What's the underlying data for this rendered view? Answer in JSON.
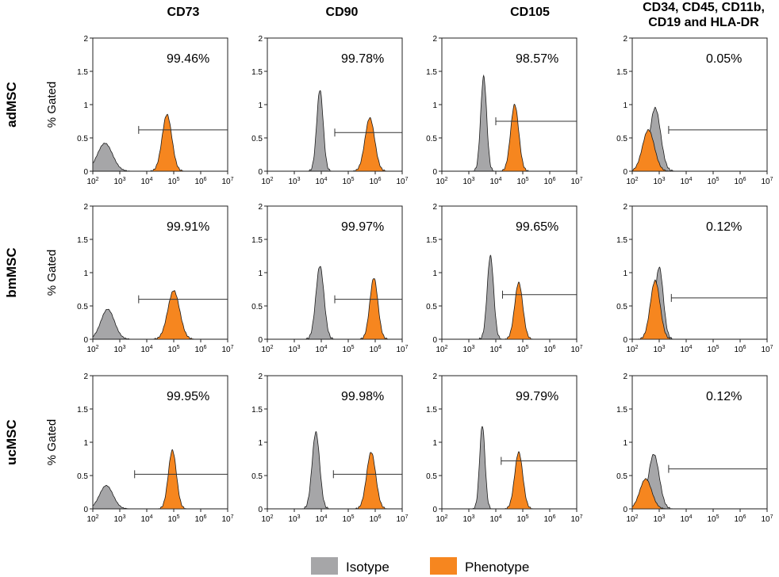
{
  "columns": [
    "CD73",
    "CD90",
    "CD105",
    "CD34, CD45, CD11b,|CD19 and HLA-DR"
  ],
  "rows": [
    "adMSC",
    "bmMSC",
    "ucMSC"
  ],
  "y_axis_label": "% Gated",
  "legend": {
    "isotype_label": "Isotype",
    "phenotype_label": "Phenotype",
    "isotype_color": "#a6a6a8",
    "phenotype_color": "#f6861f"
  },
  "chart_data": {
    "type": "histogram-grid",
    "xscale": "log10",
    "xlim": [
      100,
      10000000
    ],
    "ylim": [
      0,
      2
    ],
    "yticks": [
      0,
      0.5,
      1,
      1.5,
      2
    ],
    "xtick_exponents": [
      2,
      3,
      4,
      5,
      6,
      7
    ],
    "panels": [
      {
        "row": "adMSC",
        "col": "CD73",
        "percent": "99.46%",
        "iso": {
          "logmean": 2.45,
          "sd": 0.28,
          "peak": 0.42
        },
        "phe": {
          "logmean": 4.75,
          "sd": 0.18,
          "peak": 0.85
        },
        "gate": {
          "start": 3.7,
          "end": 7.0,
          "y": 0.62
        }
      },
      {
        "row": "adMSC",
        "col": "CD90",
        "percent": "99.78%",
        "iso": {
          "logmean": 3.95,
          "sd": 0.12,
          "peak": 1.22
        },
        "phe": {
          "logmean": 5.8,
          "sd": 0.18,
          "peak": 0.8
        },
        "gate": {
          "start": 4.5,
          "end": 7.0,
          "y": 0.58
        }
      },
      {
        "row": "adMSC",
        "col": "CD105",
        "percent": "98.57%",
        "iso": {
          "logmean": 3.55,
          "sd": 0.11,
          "peak": 1.42
        },
        "phe": {
          "logmean": 4.7,
          "sd": 0.15,
          "peak": 1.0
        },
        "gate": {
          "start": 4.0,
          "end": 7.0,
          "y": 0.75
        }
      },
      {
        "row": "adMSC",
        "col": "CD34, CD45, CD11b,|CD19 and HLA-DR",
        "percent": "0.05%",
        "iso": {
          "logmean": 2.85,
          "sd": 0.2,
          "peak": 0.95
        },
        "phe": {
          "logmean": 2.6,
          "sd": 0.22,
          "peak": 0.62
        },
        "gate": {
          "start": 3.35,
          "end": 7.0,
          "y": 0.62
        }
      },
      {
        "row": "bmMSC",
        "col": "CD73",
        "percent": "99.91%",
        "iso": {
          "logmean": 2.55,
          "sd": 0.25,
          "peak": 0.45
        },
        "phe": {
          "logmean": 5.0,
          "sd": 0.22,
          "peak": 0.73
        },
        "gate": {
          "start": 3.7,
          "end": 7.0,
          "y": 0.6
        }
      },
      {
        "row": "bmMSC",
        "col": "CD90",
        "percent": "99.97%",
        "iso": {
          "logmean": 3.95,
          "sd": 0.15,
          "peak": 1.1
        },
        "phe": {
          "logmean": 5.95,
          "sd": 0.15,
          "peak": 0.92
        },
        "gate": {
          "start": 4.5,
          "end": 7.0,
          "y": 0.6
        }
      },
      {
        "row": "bmMSC",
        "col": "CD105",
        "percent": "99.65%",
        "iso": {
          "logmean": 3.8,
          "sd": 0.12,
          "peak": 1.25
        },
        "phe": {
          "logmean": 4.85,
          "sd": 0.15,
          "peak": 0.85
        },
        "gate": {
          "start": 4.25,
          "end": 7.0,
          "y": 0.67
        }
      },
      {
        "row": "bmMSC",
        "col": "CD34, CD45, CD11b,|CD19 and HLA-DR",
        "percent": "0.12%",
        "iso": {
          "logmean": 3.0,
          "sd": 0.15,
          "peak": 1.08
        },
        "phe": {
          "logmean": 2.85,
          "sd": 0.18,
          "peak": 0.88
        },
        "gate": {
          "start": 3.45,
          "end": 7.0,
          "y": 0.62
        }
      },
      {
        "row": "ucMSC",
        "col": "CD73",
        "percent": "99.95%",
        "iso": {
          "logmean": 2.5,
          "sd": 0.25,
          "peak": 0.35
        },
        "phe": {
          "logmean": 4.95,
          "sd": 0.15,
          "peak": 0.88
        },
        "gate": {
          "start": 3.55,
          "end": 7.0,
          "y": 0.52
        }
      },
      {
        "row": "ucMSC",
        "col": "CD90",
        "percent": "99.98%",
        "iso": {
          "logmean": 3.8,
          "sd": 0.14,
          "peak": 1.15
        },
        "phe": {
          "logmean": 5.85,
          "sd": 0.17,
          "peak": 0.85
        },
        "gate": {
          "start": 4.45,
          "end": 7.0,
          "y": 0.52
        }
      },
      {
        "row": "ucMSC",
        "col": "CD105",
        "percent": "99.79%",
        "iso": {
          "logmean": 3.5,
          "sd": 0.1,
          "peak": 1.25
        },
        "phe": {
          "logmean": 4.85,
          "sd": 0.15,
          "peak": 0.85
        },
        "gate": {
          "start": 4.2,
          "end": 7.0,
          "y": 0.72
        }
      },
      {
        "row": "ucMSC",
        "col": "CD34, CD45, CD11b,|CD19 and HLA-DR",
        "percent": "0.12%",
        "iso": {
          "logmean": 2.8,
          "sd": 0.2,
          "peak": 0.82
        },
        "phe": {
          "logmean": 2.5,
          "sd": 0.22,
          "peak": 0.45
        },
        "gate": {
          "start": 3.35,
          "end": 7.0,
          "y": 0.6
        }
      }
    ]
  }
}
